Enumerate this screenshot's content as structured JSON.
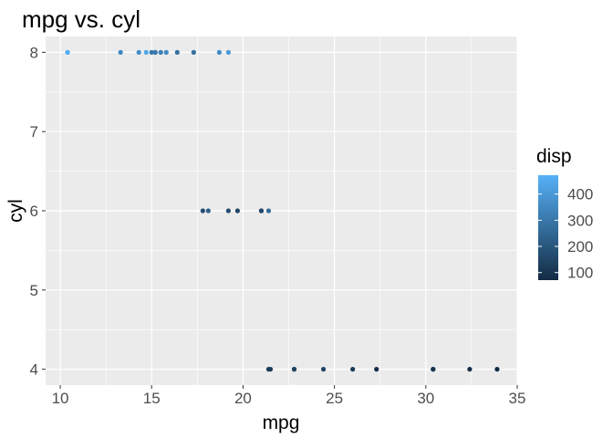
{
  "chart_data": {
    "type": "scatter",
    "title": "mpg vs. cyl",
    "xlabel": "mpg",
    "ylabel": "cyl",
    "xlim": [
      9.2,
      35.0
    ],
    "ylim": [
      3.8,
      8.2
    ],
    "x_ticks": [
      10,
      15,
      20,
      25,
      30,
      35
    ],
    "y_ticks": [
      4,
      5,
      6,
      7,
      8
    ],
    "grid": true,
    "color_legend": {
      "title": "disp",
      "ticks": [
        100,
        200,
        300,
        400
      ],
      "range": [
        71.1,
        472
      ],
      "low_color": "#132B43",
      "high_color": "#56B1F7",
      "placement": "right"
    },
    "points": [
      {
        "x": 21.0,
        "y": 6,
        "disp": 160
      },
      {
        "x": 21.0,
        "y": 6,
        "disp": 160
      },
      {
        "x": 22.8,
        "y": 4,
        "disp": 108
      },
      {
        "x": 21.4,
        "y": 6,
        "disp": 258
      },
      {
        "x": 18.7,
        "y": 8,
        "disp": 360
      },
      {
        "x": 18.1,
        "y": 6,
        "disp": 225
      },
      {
        "x": 14.3,
        "y": 8,
        "disp": 360
      },
      {
        "x": 24.4,
        "y": 4,
        "disp": 146.7
      },
      {
        "x": 22.8,
        "y": 4,
        "disp": 140.8
      },
      {
        "x": 19.2,
        "y": 6,
        "disp": 167.6
      },
      {
        "x": 17.8,
        "y": 6,
        "disp": 167.6
      },
      {
        "x": 16.4,
        "y": 8,
        "disp": 275.8
      },
      {
        "x": 17.3,
        "y": 8,
        "disp": 275.8
      },
      {
        "x": 15.2,
        "y": 8,
        "disp": 275.8
      },
      {
        "x": 10.4,
        "y": 8,
        "disp": 472
      },
      {
        "x": 10.4,
        "y": 8,
        "disp": 460
      },
      {
        "x": 14.7,
        "y": 8,
        "disp": 440
      },
      {
        "x": 32.4,
        "y": 4,
        "disp": 78.7
      },
      {
        "x": 30.4,
        "y": 4,
        "disp": 75.7
      },
      {
        "x": 33.9,
        "y": 4,
        "disp": 71.1
      },
      {
        "x": 21.5,
        "y": 4,
        "disp": 120.1
      },
      {
        "x": 15.5,
        "y": 8,
        "disp": 318
      },
      {
        "x": 15.2,
        "y": 8,
        "disp": 304
      },
      {
        "x": 13.3,
        "y": 8,
        "disp": 350
      },
      {
        "x": 19.2,
        "y": 8,
        "disp": 400
      },
      {
        "x": 27.3,
        "y": 4,
        "disp": 79
      },
      {
        "x": 26.0,
        "y": 4,
        "disp": 120.3
      },
      {
        "x": 30.4,
        "y": 4,
        "disp": 95.1
      },
      {
        "x": 15.8,
        "y": 8,
        "disp": 351
      },
      {
        "x": 19.7,
        "y": 6,
        "disp": 145
      },
      {
        "x": 15.0,
        "y": 8,
        "disp": 301
      },
      {
        "x": 21.4,
        "y": 4,
        "disp": 121
      }
    ]
  }
}
